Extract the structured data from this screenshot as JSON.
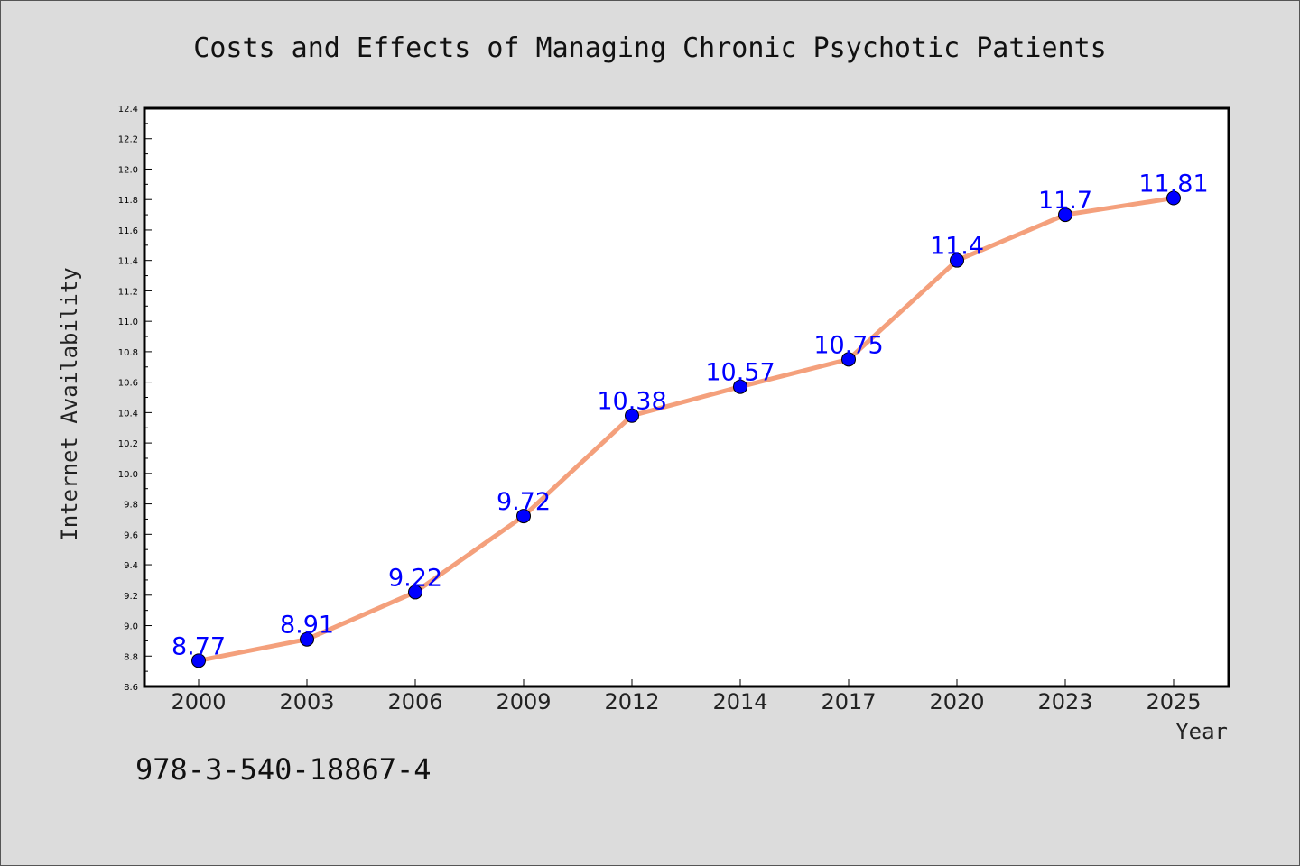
{
  "chart_data": {
    "type": "line",
    "title": "Costs and Effects of Managing Chronic Psychotic Patients",
    "xlabel": "Year",
    "ylabel": "Internet Availability",
    "categories": [
      "2000",
      "2003",
      "2006",
      "2009",
      "2012",
      "2014",
      "2017",
      "2020",
      "2023",
      "2025"
    ],
    "series": [
      {
        "values": [
          8.77,
          8.91,
          9.22,
          9.72,
          10.38,
          10.57,
          10.75,
          11.4,
          11.7,
          11.81
        ],
        "data_labels": [
          "8.77",
          "8.91",
          "9.22",
          "9.72",
          "10.38",
          "10.57",
          "10.75",
          "11.4",
          "11.7",
          "11.81"
        ]
      }
    ],
    "ylim": [
      8.6,
      12.4
    ],
    "yticks": [
      "8.6",
      "8.8",
      "9.0",
      "9.2",
      "9.4",
      "9.6",
      "9.8",
      "10.0",
      "10.2",
      "10.4",
      "10.6",
      "10.8",
      "11.0",
      "11.2",
      "11.4",
      "11.6",
      "11.8",
      "12.0",
      "12.2",
      "12.4"
    ],
    "grid": false,
    "line_color": "#f4a07c",
    "marker_color": "#0000ff",
    "label_color": "#0000ff",
    "plot_background": "#ffffff",
    "figure_background": "#dcdcdc"
  },
  "footnote": "978-3-540-18867-4"
}
